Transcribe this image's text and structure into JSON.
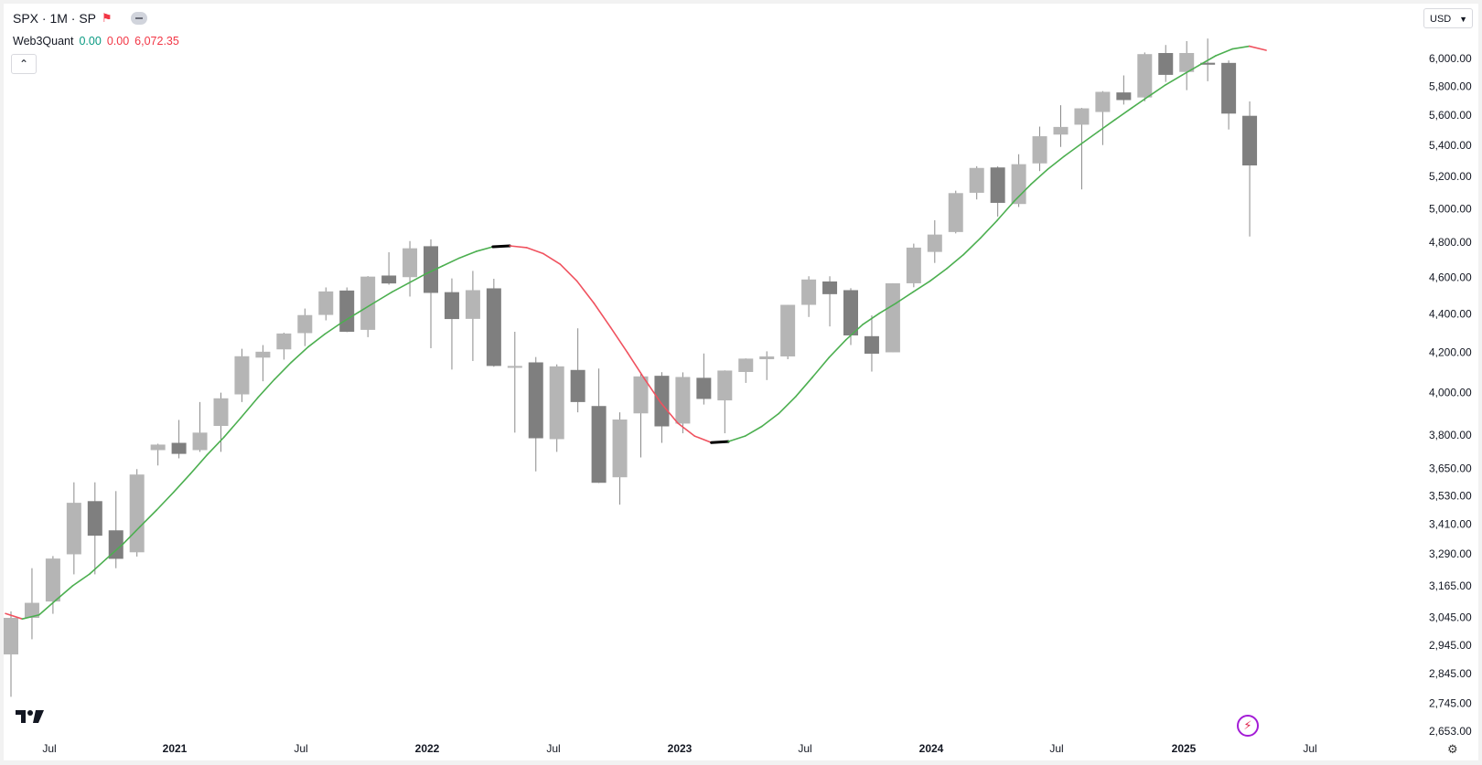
{
  "header": {
    "symbol": "SPX · 1M · SP",
    "flag_icon": "flag-icon",
    "menu_icon": "more-icon"
  },
  "indicator": {
    "name": "Web3Quant",
    "value1": "0.00",
    "value2": "0.00",
    "value3": "6,072.35"
  },
  "currency": "USD",
  "colors": {
    "up": "#b5b5b5",
    "down": "#7f7f7f",
    "wick": "#8a8a8a",
    "line_up": "#4caf50",
    "line_down": "#f0525f",
    "flat": "#000000"
  },
  "chart_data": {
    "type": "candlestick",
    "symbol": "SPX",
    "interval": "1M",
    "ylim": [
      2600,
      6200
    ],
    "scale": "log",
    "y_ticks": [
      "6,000.00",
      "5,800.00",
      "5,600.00",
      "5,400.00",
      "5,200.00",
      "5,000.00",
      "4,800.00",
      "4,600.00",
      "4,400.00",
      "4,200.00",
      "4,000.00",
      "3,800.00",
      "3,650.00",
      "3,530.00",
      "3,410.00",
      "3,290.00",
      "3,165.00",
      "3,045.00",
      "2,945.00",
      "2,845.00",
      "2,745.00",
      "2,653.00"
    ],
    "x_ticks": [
      "Jul",
      "2021",
      "Jul",
      "2022",
      "Jul",
      "2023",
      "Jul",
      "2024",
      "Jul",
      "2025",
      "Jul"
    ],
    "x_ticks_bold": [
      "2021",
      "2022",
      "2023",
      "2024",
      "2025"
    ],
    "candles": [
      {
        "o": 2912,
        "h": 3068,
        "l": 2766,
        "c": 3044
      },
      {
        "o": 3044,
        "h": 3233,
        "l": 2966,
        "c": 3100
      },
      {
        "o": 3105,
        "h": 3281,
        "l": 3059,
        "c": 3271
      },
      {
        "o": 3288,
        "h": 3588,
        "l": 3209,
        "c": 3500
      },
      {
        "o": 3507,
        "h": 3588,
        "l": 3209,
        "c": 3363
      },
      {
        "o": 3385,
        "h": 3550,
        "l": 3233,
        "c": 3270
      },
      {
        "o": 3296,
        "h": 3646,
        "l": 3279,
        "c": 3622
      },
      {
        "o": 3731,
        "h": 3760,
        "l": 3662,
        "c": 3756
      },
      {
        "o": 3764,
        "h": 3870,
        "l": 3694,
        "c": 3714
      },
      {
        "o": 3731,
        "h": 3955,
        "l": 3723,
        "c": 3811
      },
      {
        "o": 3842,
        "h": 4000,
        "l": 3723,
        "c": 3973
      },
      {
        "o": 3992,
        "h": 4219,
        "l": 3955,
        "c": 4181
      },
      {
        "o": 4174,
        "h": 4238,
        "l": 4056,
        "c": 4204
      },
      {
        "o": 4216,
        "h": 4302,
        "l": 4164,
        "c": 4298
      },
      {
        "o": 4300,
        "h": 4430,
        "l": 4233,
        "c": 4395
      },
      {
        "o": 4396,
        "h": 4545,
        "l": 4367,
        "c": 4523
      },
      {
        "o": 4528,
        "h": 4545,
        "l": 4305,
        "c": 4307
      },
      {
        "o": 4317,
        "h": 4608,
        "l": 4279,
        "c": 4605
      },
      {
        "o": 4611,
        "h": 4743,
        "l": 4560,
        "c": 4567
      },
      {
        "o": 4602,
        "h": 4808,
        "l": 4495,
        "c": 4766
      },
      {
        "o": 4778,
        "h": 4818,
        "l": 4222,
        "c": 4515
      },
      {
        "o": 4519,
        "h": 4595,
        "l": 4114,
        "c": 4374
      },
      {
        "o": 4375,
        "h": 4637,
        "l": 4157,
        "c": 4530
      },
      {
        "o": 4540,
        "h": 4593,
        "l": 4128,
        "c": 4132
      },
      {
        "o": 4130,
        "h": 4307,
        "l": 3811,
        "c": 4132
      },
      {
        "o": 4150,
        "h": 4177,
        "l": 3636,
        "c": 3785
      },
      {
        "o": 3781,
        "h": 4140,
        "l": 3723,
        "c": 4130
      },
      {
        "o": 4112,
        "h": 4325,
        "l": 3906,
        "c": 3955
      },
      {
        "o": 3936,
        "h": 4119,
        "l": 3585,
        "c": 3586
      },
      {
        "o": 3610,
        "h": 3906,
        "l": 3492,
        "c": 3872
      },
      {
        "o": 3901,
        "h": 4100,
        "l": 3698,
        "c": 4080
      },
      {
        "o": 4083,
        "h": 4101,
        "l": 3764,
        "c": 3840
      },
      {
        "o": 3853,
        "h": 4100,
        "l": 3808,
        "c": 4077
      },
      {
        "o": 4073,
        "h": 4195,
        "l": 3943,
        "c": 3970
      },
      {
        "o": 3963,
        "h": 4110,
        "l": 3808,
        "c": 4109
      },
      {
        "o": 4102,
        "h": 4170,
        "l": 4048,
        "c": 4169
      },
      {
        "o": 4166,
        "h": 4206,
        "l": 4062,
        "c": 4180
      },
      {
        "o": 4180,
        "h": 4450,
        "l": 4166,
        "c": 4450
      },
      {
        "o": 4450,
        "h": 4607,
        "l": 4385,
        "c": 4589
      },
      {
        "o": 4578,
        "h": 4607,
        "l": 4335,
        "c": 4508
      },
      {
        "o": 4530,
        "h": 4541,
        "l": 4238,
        "c": 4288
      },
      {
        "o": 4284,
        "h": 4393,
        "l": 4104,
        "c": 4194
      },
      {
        "o": 4201,
        "h": 4568,
        "l": 4201,
        "c": 4568
      },
      {
        "o": 4568,
        "h": 4793,
        "l": 4546,
        "c": 4770
      },
      {
        "o": 4745,
        "h": 4931,
        "l": 4682,
        "c": 4846
      },
      {
        "o": 4861,
        "h": 5111,
        "l": 4853,
        "c": 5096
      },
      {
        "o": 5098,
        "h": 5265,
        "l": 5057,
        "c": 5254
      },
      {
        "o": 5257,
        "h": 5264,
        "l": 4953,
        "c": 5036
      },
      {
        "o": 5029,
        "h": 5342,
        "l": 5011,
        "c": 5278
      },
      {
        "o": 5283,
        "h": 5524,
        "l": 5234,
        "c": 5460
      },
      {
        "o": 5471,
        "h": 5669,
        "l": 5390,
        "c": 5522
      },
      {
        "o": 5537,
        "h": 5651,
        "l": 5119,
        "c": 5648
      },
      {
        "o": 5623,
        "h": 5767,
        "l": 5402,
        "c": 5762
      },
      {
        "o": 5758,
        "h": 5878,
        "l": 5674,
        "c": 5705
      },
      {
        "o": 5723,
        "h": 6044,
        "l": 5696,
        "c": 6032
      },
      {
        "o": 6040,
        "h": 6099,
        "l": 5832,
        "c": 5882
      },
      {
        "o": 5903,
        "h": 6128,
        "l": 5774,
        "c": 6040
      },
      {
        "o": 5969,
        "h": 6147,
        "l": 5837,
        "c": 5955
      },
      {
        "o": 5968,
        "h": 5986,
        "l": 5505,
        "c": 5612
      },
      {
        "o": 5597,
        "h": 5695,
        "l": 4835,
        "c": 5270
      }
    ],
    "indicator_line": [
      3060,
      3040,
      3055,
      3110,
      3165,
      3210,
      3270,
      3330,
      3400,
      3470,
      3545,
      3625,
      3710,
      3790,
      3880,
      3975,
      4065,
      4150,
      4228,
      4295,
      4355,
      4410,
      4465,
      4520,
      4570,
      4620,
      4665,
      4710,
      4748,
      4775,
      4780,
      4770,
      4735,
      4675,
      4580,
      4460,
      4330,
      4200,
      4070,
      3950,
      3855,
      3795,
      3765,
      3770,
      3795,
      3840,
      3900,
      3980,
      4075,
      4175,
      4265,
      4345,
      4405,
      4460,
      4520,
      4580,
      4650,
      4730,
      4825,
      4930,
      5045,
      5150,
      5245,
      5330,
      5410,
      5490,
      5570,
      5650,
      5730,
      5810,
      5880,
      5950,
      6020,
      6070,
      6090,
      6060
    ]
  }
}
